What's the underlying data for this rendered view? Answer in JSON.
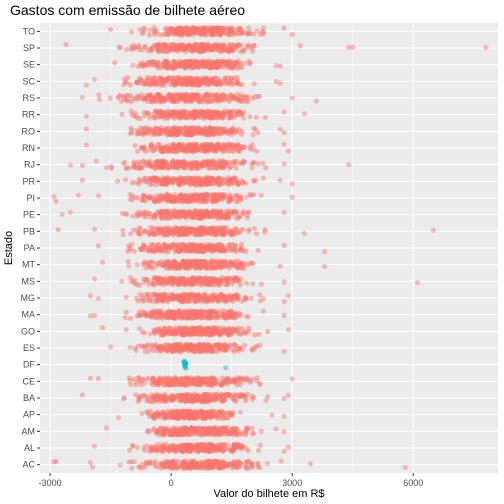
{
  "chart_data": {
    "type": "scatter",
    "title": "Gastos com emissão de bilhete aéreo",
    "xlabel": "Valor do bilhete em R$",
    "ylabel": "Estado",
    "xlim": [
      -3250,
      8100
    ],
    "x_ticks": [
      -3000,
      0,
      3000,
      6000
    ],
    "x_tick_labels": [
      "-3000",
      "0",
      "3000",
      "6000"
    ],
    "categories": [
      "AC",
      "AL",
      "AM",
      "AP",
      "BA",
      "CE",
      "DF",
      "ES",
      "GO",
      "MA",
      "MG",
      "MS",
      "MT",
      "PA",
      "PB",
      "PE",
      "PI",
      "PR",
      "RJ",
      "RN",
      "RO",
      "RR",
      "RS",
      "SC",
      "SE",
      "SP",
      "TO"
    ],
    "colors": {
      "main": "#F8766D",
      "DF": "#00BFC4",
      "panel": "#EBEBEB",
      "grid": "#FFFFFF"
    },
    "grid": true,
    "legend": "none",
    "jitter": true,
    "series": [
      {
        "category": "AC",
        "dense_range": [
          -1500,
          2900
        ],
        "outliers": [
          -2900,
          -2850,
          -2000,
          -1950,
          3450,
          5800
        ]
      },
      {
        "category": "AL",
        "dense_range": [
          -1200,
          2500
        ],
        "outliers": [
          -1900,
          2800,
          2900
        ]
      },
      {
        "category": "AM",
        "dense_range": [
          -1300,
          2500
        ],
        "outliers": [
          -1600,
          2600,
          2800
        ]
      },
      {
        "category": "AP",
        "dense_range": [
          -1000,
          2000
        ],
        "outliers": [
          -1300,
          2500,
          2800
        ]
      },
      {
        "category": "BA",
        "dense_range": [
          -1500,
          2600
        ],
        "outliers": [
          -2200,
          2800,
          2900
        ]
      },
      {
        "category": "CE",
        "dense_range": [
          -1500,
          2600
        ],
        "outliers": [
          -2000,
          -1800,
          3000
        ]
      },
      {
        "category": "DF",
        "dense_range": [
          300,
          400
        ],
        "outliers": [
          1350
        ]
      },
      {
        "category": "ES",
        "dense_range": [
          -1300,
          2500
        ],
        "outliers": [
          -1500,
          2800
        ]
      },
      {
        "category": "GO",
        "dense_range": [
          -1300,
          2500
        ],
        "outliers": [
          -1700,
          2900
        ]
      },
      {
        "category": "MA",
        "dense_range": [
          -1500,
          2500
        ],
        "outliers": [
          -2000,
          -1900,
          2800
        ]
      },
      {
        "category": "MG",
        "dense_range": [
          -1500,
          2600
        ],
        "outliers": [
          -2000,
          -1800,
          2800,
          2900
        ]
      },
      {
        "category": "MS",
        "dense_range": [
          -1500,
          2500
        ],
        "outliers": [
          -1900,
          2800,
          6100
        ]
      },
      {
        "category": "MT",
        "dense_range": [
          -1300,
          2500
        ],
        "outliers": [
          -1700,
          2700,
          3800
        ]
      },
      {
        "category": "PA",
        "dense_range": [
          -1500,
          2500
        ],
        "outliers": [
          -1800,
          2800,
          3800
        ]
      },
      {
        "category": "PB",
        "dense_range": [
          -1500,
          2600
        ],
        "outliers": [
          -2800,
          -1900,
          3300,
          6500
        ]
      },
      {
        "category": "PE",
        "dense_range": [
          -1500,
          2600
        ],
        "outliers": [
          -2700,
          -2500,
          2800
        ]
      },
      {
        "category": "PI",
        "dense_range": [
          -1500,
          2600
        ],
        "outliers": [
          -2900,
          -2850,
          -2300,
          -1800,
          3000
        ]
      },
      {
        "category": "PR",
        "dense_range": [
          -1500,
          2600
        ],
        "outliers": [
          -2200,
          2700,
          3000
        ]
      },
      {
        "category": "RJ",
        "dense_range": [
          -2100,
          2600
        ],
        "outliers": [
          -2500,
          -2200,
          2800,
          4400
        ]
      },
      {
        "category": "RN",
        "dense_range": [
          -1300,
          2500
        ],
        "outliers": [
          -2100,
          2800,
          2900
        ]
      },
      {
        "category": "RO",
        "dense_range": [
          -1500,
          2500
        ],
        "outliers": [
          -2100,
          2700,
          2800
        ]
      },
      {
        "category": "RR",
        "dense_range": [
          -1500,
          2600
        ],
        "outliers": [
          -2100,
          2800,
          3300
        ]
      },
      {
        "category": "RS",
        "dense_range": [
          -2100,
          2800
        ],
        "outliers": [
          -2200,
          3000,
          3600
        ]
      },
      {
        "category": "SC",
        "dense_range": [
          -1600,
          2400
        ],
        "outliers": [
          -2100,
          -1900,
          2600,
          2700
        ]
      },
      {
        "category": "SE",
        "dense_range": [
          -1300,
          2500
        ],
        "outliers": [
          -1400,
          2600,
          2700
        ]
      },
      {
        "category": "SP",
        "dense_range": [
          -1700,
          2800
        ],
        "outliers": [
          -2600,
          3200,
          4400,
          4500,
          7800
        ]
      },
      {
        "category": "TO",
        "dense_range": [
          -1200,
          2700
        ],
        "outliers": [
          -1500,
          2800,
          3000
        ]
      }
    ]
  }
}
